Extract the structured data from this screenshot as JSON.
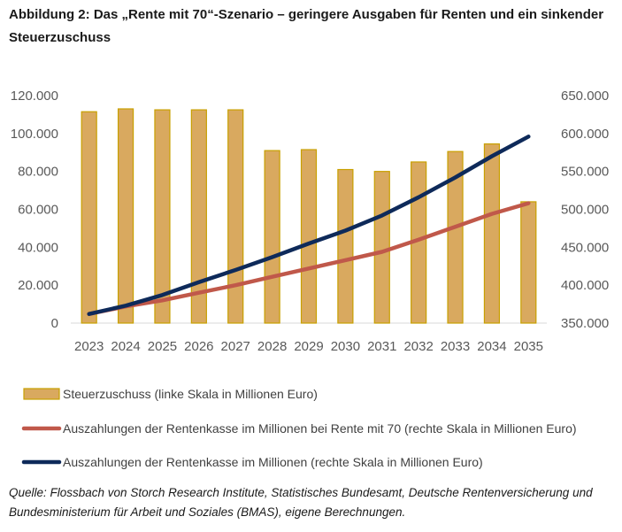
{
  "title": "Abbildung 2: Das „Rente mit 70“-Szenario – geringere Ausgaben für Renten und ein sinkender Steuerzuschuss",
  "source": "Quelle: Flossbach von Storch Research Institute, Statistisches Bundesamt, Deutsche Rentenversicherung und Bundesministerium für Arbeit und Soziales (BMAS), eigene Berechnungen.",
  "colors": {
    "bar_fill": "#D9A95F",
    "bar_edge": "#C8A000",
    "line_r70": "#C0584A",
    "line_base": "#0E2A5A",
    "axis": "#d9d9d9"
  },
  "chart_data": {
    "type": "bar+line",
    "categories": [
      "2023",
      "2024",
      "2025",
      "2026",
      "2027",
      "2028",
      "2029",
      "2030",
      "2031",
      "2032",
      "2033",
      "2034",
      "2035"
    ],
    "left_axis": {
      "ylim": [
        0,
        120000
      ],
      "ticks": [
        "0",
        "20.000",
        "40.000",
        "60.000",
        "80.000",
        "100.000",
        "120.000"
      ]
    },
    "right_axis": {
      "ylim": [
        350000,
        650000
      ],
      "ticks": [
        "350.000",
        "400.000",
        "450.000",
        "500.000",
        "550.000",
        "600.000",
        "650.000"
      ]
    },
    "series": [
      {
        "name": "Steuerzuschuss (linke Skala in Millionen Euro)",
        "type": "bar",
        "axis": "left",
        "values": [
          111500,
          113000,
          112500,
          112500,
          112500,
          91000,
          91500,
          81000,
          80000,
          85000,
          90500,
          94500,
          64000
        ]
      },
      {
        "name": "Auszahlungen der Rentenkasse im Millionen bei Rente mit 70  (rechte Skala in Millionen Euro)",
        "type": "line",
        "axis": "right",
        "values": [
          362000,
          372000,
          380000,
          390000,
          400000,
          411000,
          422000,
          433000,
          444000,
          460000,
          477000,
          494000,
          508000
        ]
      },
      {
        "name": "Auszahlungen der Rentenkasse im Millionen (rechte Skala in Millionen Euro)",
        "type": "line",
        "axis": "right",
        "values": [
          362000,
          373000,
          387000,
          404000,
          420000,
          437000,
          455000,
          472000,
          492000,
          516000,
          542000,
          570000,
          596000
        ]
      }
    ],
    "legend_position": "bottom",
    "grid": false
  }
}
